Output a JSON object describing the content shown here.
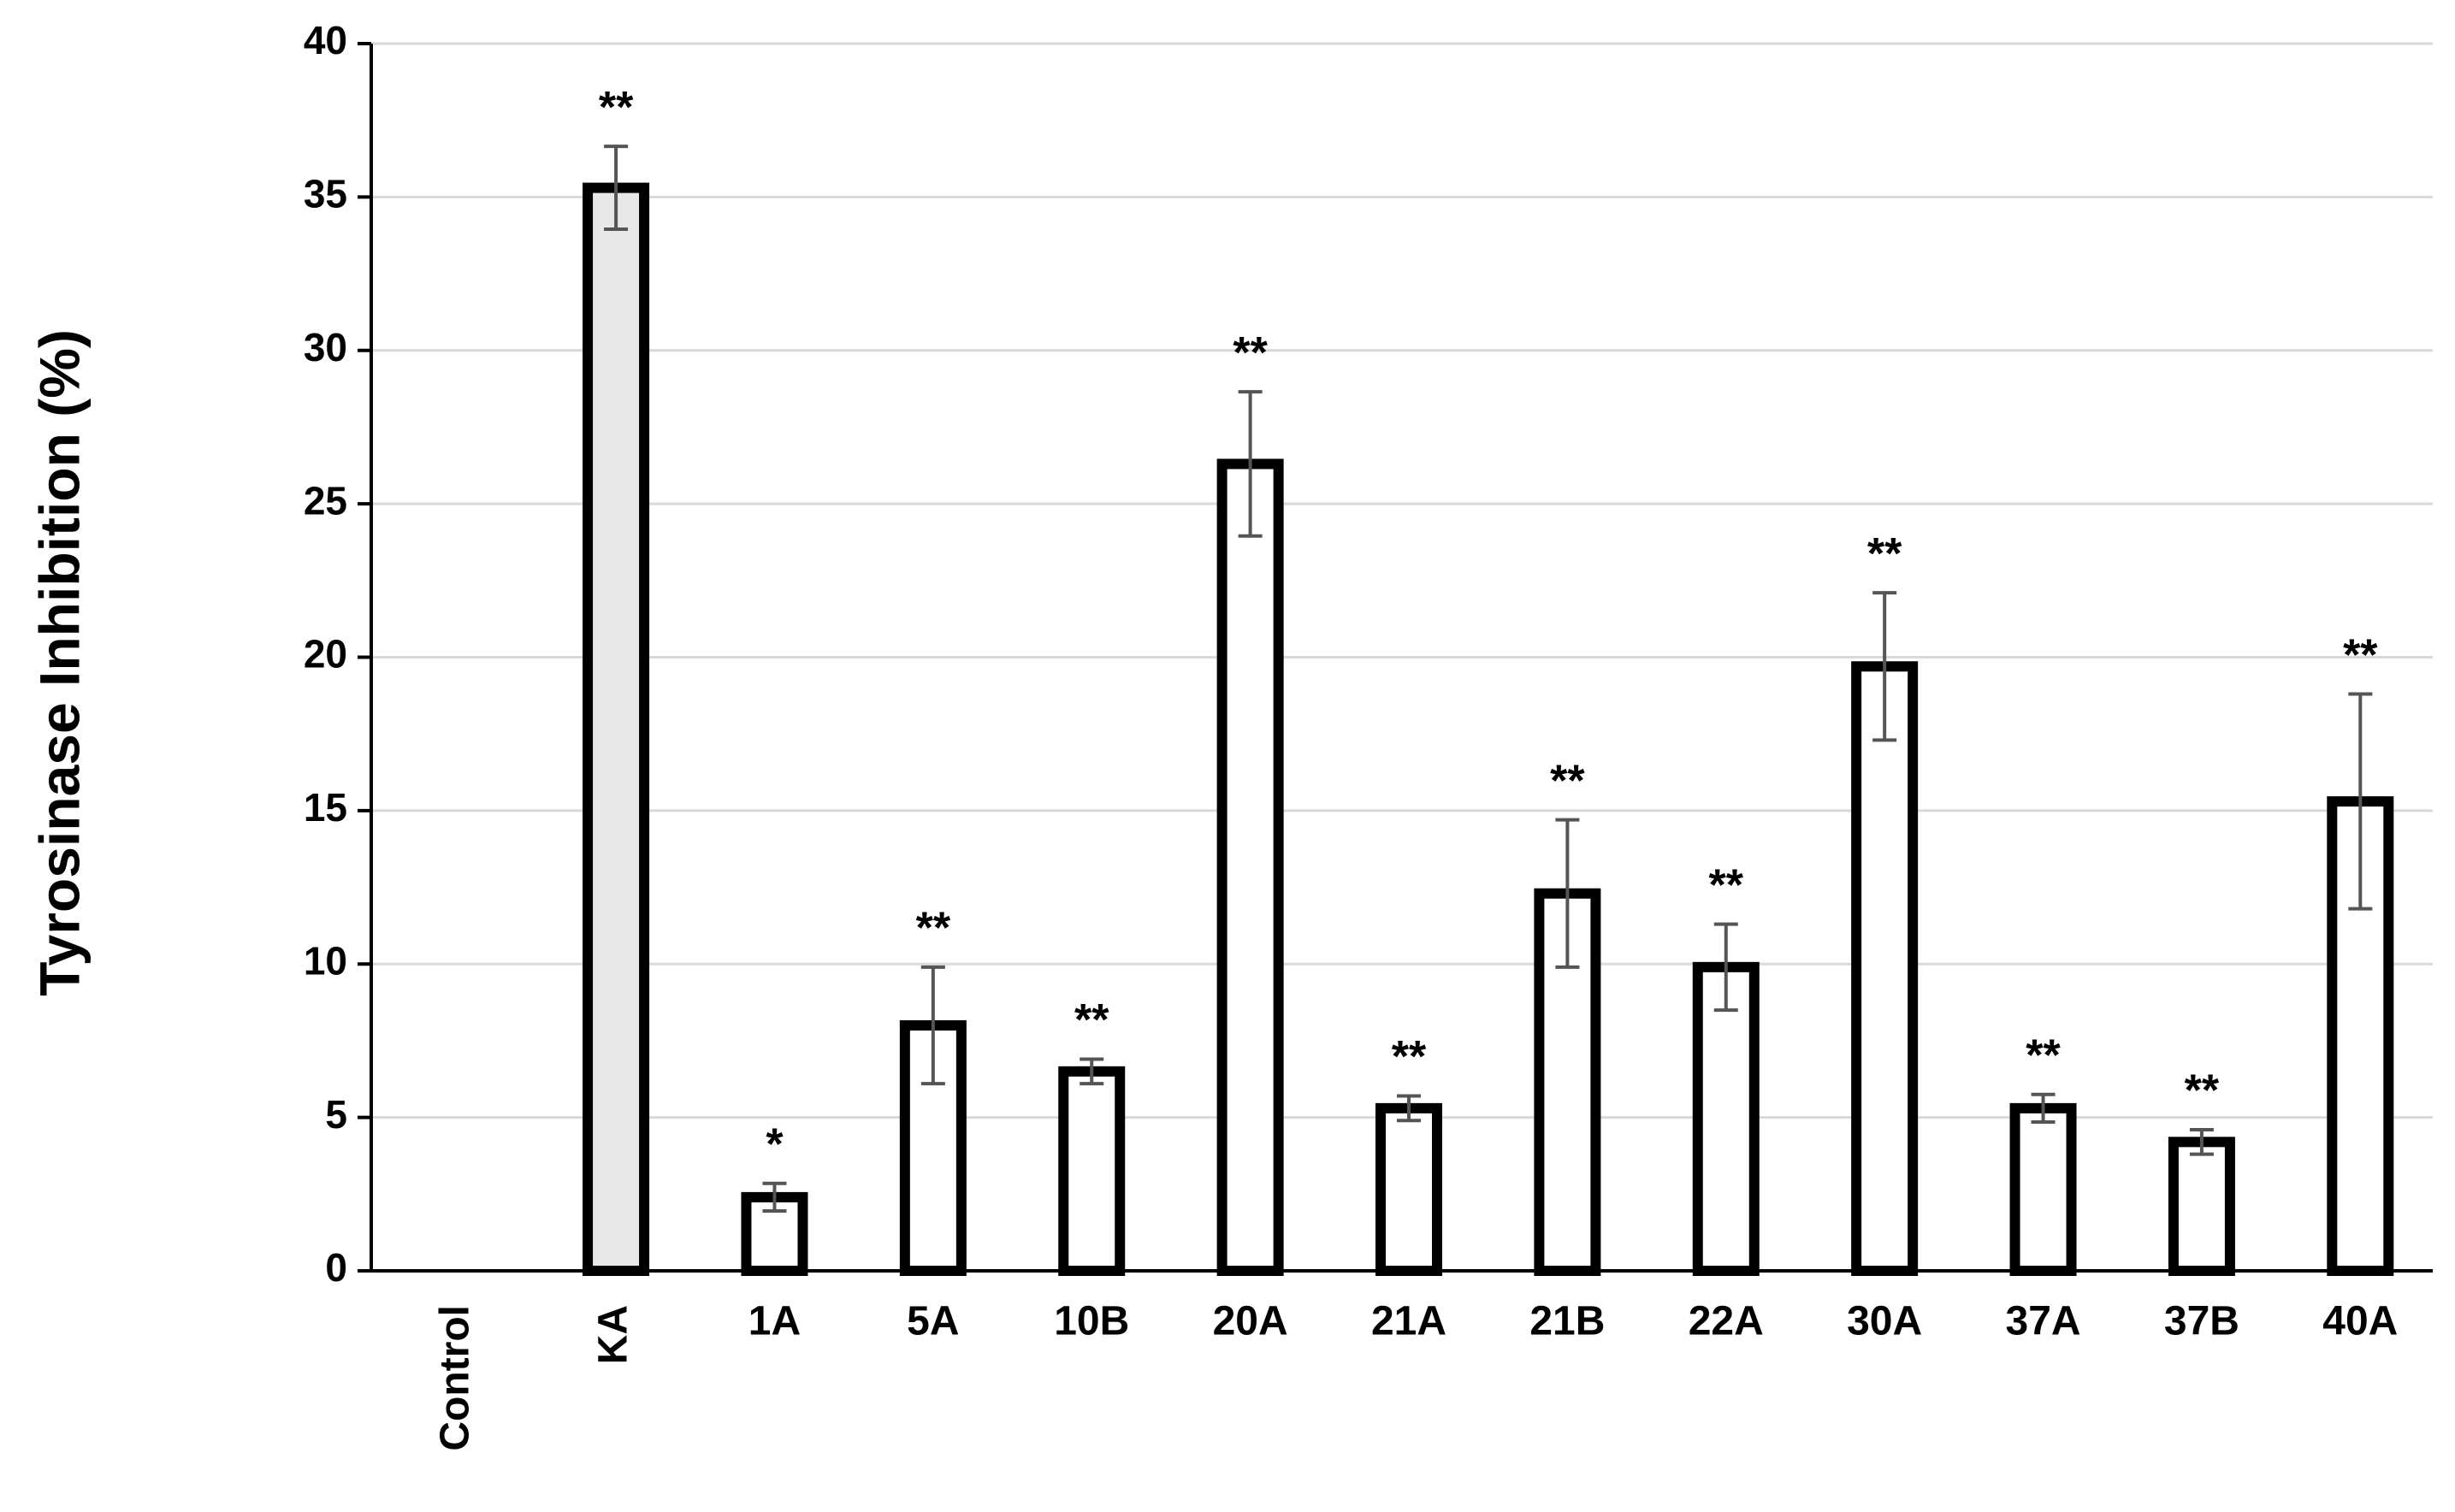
{
  "chart_data": {
    "type": "bar",
    "y_label": "Tyrosinase Inhibition  (%)",
    "categories": [
      "Control",
      "KA",
      "1A",
      "5A",
      "10B",
      "20A",
      "21A",
      "21B",
      "22A",
      "30A",
      "37A",
      "37B",
      "40A"
    ],
    "values": [
      0,
      35.3,
      2.4,
      8.0,
      6.5,
      26.3,
      5.3,
      12.3,
      9.9,
      19.7,
      5.3,
      4.2,
      15.3
    ],
    "errors": [
      null,
      1.35,
      0.45,
      1.9,
      0.4,
      2.35,
      0.4,
      2.4,
      1.4,
      2.4,
      0.45,
      0.4,
      3.5
    ],
    "annotations": [
      null,
      "**",
      "*",
      "**",
      "**",
      "**",
      "**",
      "**",
      "**",
      "**",
      "**",
      "**",
      "**"
    ],
    "colors": [
      "#ffffff",
      "#e8e8e8",
      "#ffffff",
      "#ffffff",
      "#ffffff",
      "#ffffff",
      "#ffffff",
      "#ffffff",
      "#ffffff",
      "#ffffff",
      "#ffffff",
      "#ffffff",
      "#ffffff"
    ],
    "edge_color": "#000000",
    "error_color": "#555555",
    "grid_color": "#d9d9d9",
    "ylim": [
      0,
      40
    ],
    "yticks": [
      0,
      5,
      10,
      15,
      20,
      25,
      30,
      35,
      40
    ],
    "grid": true
  }
}
